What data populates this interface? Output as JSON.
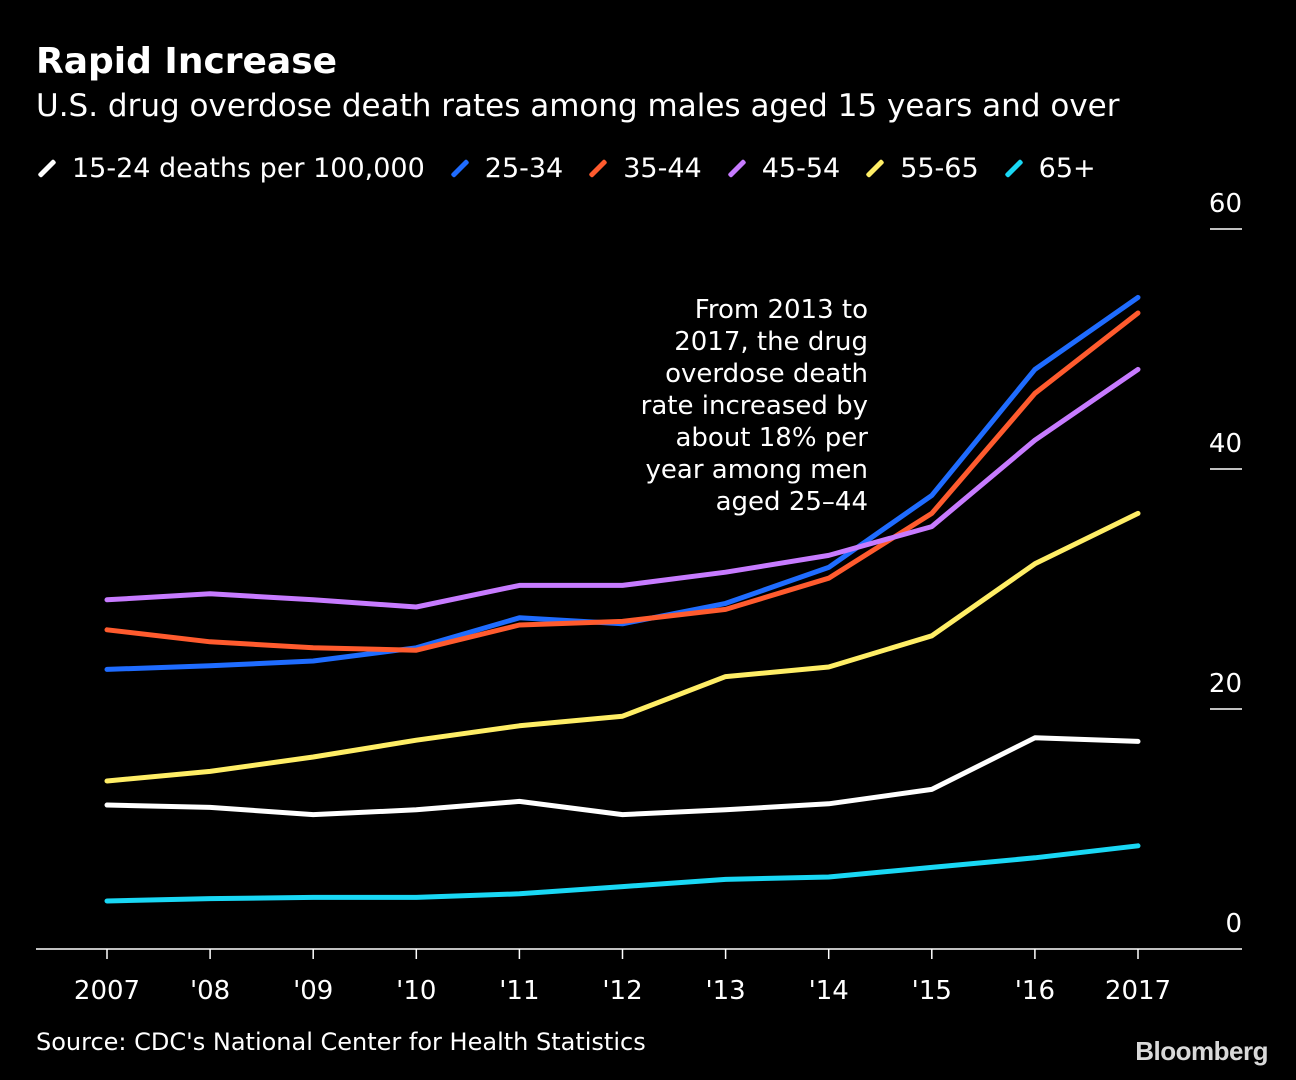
{
  "title": "Rapid Increase",
  "subtitle": "U.S. drug overdose death rates among males aged 15 years and over",
  "source": "Source: CDC's National Center for Health Statistics",
  "brand": "Bloomberg",
  "legend": [
    {
      "label": "15-24 deaths per 100,000",
      "color": "#ffffff"
    },
    {
      "label": "25-34",
      "color": "#1f6cff"
    },
    {
      "label": "35-44",
      "color": "#ff5b2e"
    },
    {
      "label": "45-54",
      "color": "#c77bff"
    },
    {
      "label": "55-65",
      "color": "#ffee66"
    },
    {
      "label": "65+",
      "color": "#19d8f5"
    }
  ],
  "chart_data": {
    "type": "line",
    "x": [
      2007,
      2008,
      2009,
      2010,
      2011,
      2012,
      2013,
      2014,
      2015,
      2016,
      2017
    ],
    "x_tick_labels": [
      "2007",
      "'08",
      "'09",
      "'10",
      "'11",
      "'12",
      "'13",
      "'14",
      "'15",
      "'16",
      "2017"
    ],
    "y_ticks": [
      0,
      20,
      40,
      60
    ],
    "ylim": [
      0,
      60
    ],
    "axis_side": "right",
    "grid": false,
    "legend_position": "top",
    "series": [
      {
        "name": "15-24",
        "color": "#ffffff",
        "values": [
          12.0,
          11.8,
          11.2,
          11.6,
          12.3,
          11.2,
          11.6,
          12.1,
          13.3,
          17.6,
          17.3
        ]
      },
      {
        "name": "25-34",
        "color": "#1f6cff",
        "values": [
          23.3,
          23.6,
          24.0,
          25.1,
          27.6,
          27.1,
          28.8,
          31.8,
          37.8,
          48.3,
          54.3
        ]
      },
      {
        "name": "35-44",
        "color": "#ff5b2e",
        "values": [
          26.6,
          25.6,
          25.1,
          24.9,
          27.0,
          27.3,
          28.3,
          30.9,
          36.3,
          46.3,
          53.0
        ]
      },
      {
        "name": "45-54",
        "color": "#c77bff",
        "values": [
          29.1,
          29.6,
          29.1,
          28.5,
          30.3,
          30.3,
          31.4,
          32.8,
          35.2,
          42.4,
          48.3
        ]
      },
      {
        "name": "55-65",
        "color": "#ffee66",
        "values": [
          14.0,
          14.8,
          16.0,
          17.4,
          18.6,
          19.4,
          22.7,
          23.5,
          26.1,
          32.1,
          36.3
        ]
      },
      {
        "name": "65+",
        "color": "#19d8f5",
        "values": [
          4.0,
          4.2,
          4.3,
          4.3,
          4.6,
          5.2,
          5.8,
          6.0,
          6.8,
          7.6,
          8.6
        ]
      }
    ],
    "annotation": {
      "lines": [
        "From 2013 to",
        "2017, the drug",
        "overdose death",
        "rate increased by",
        "about 18% per",
        "year among men",
        "aged 25–44"
      ]
    }
  }
}
